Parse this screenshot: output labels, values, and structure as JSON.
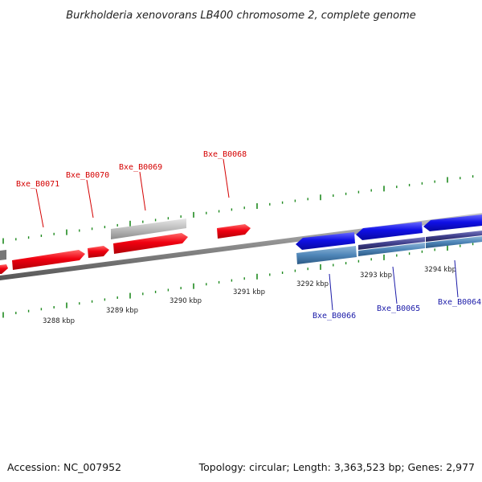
{
  "title": "Burkholderia xenovorans LB400 chromosome 2, complete genome",
  "footer": {
    "accession": "Accession: NC_007952",
    "topology": "Topology: circular; Length: 3,363,523 bp; Genes: 2,977"
  },
  "colors": {
    "forward_gene": "#e8000e",
    "reverse_gene": "#1010e0",
    "secondary_forward": "#bdbdbd",
    "secondary_reverse": "#4f86b8",
    "pseudo_track": "#3f3f8c",
    "backbone": "#8a8a8a",
    "tick": "#1f8a1f"
  },
  "scale": {
    "kbp_labels": [
      "3288 kbp",
      "3289 kbp",
      "3290 kbp",
      "3291 kbp",
      "3292 kbp",
      "3293 kbp",
      "3294 kbp"
    ]
  },
  "gene_labels": {
    "forward": [
      "Bxe_B0071",
      "Bxe_B0070",
      "Bxe_B0069",
      "Bxe_B0068"
    ],
    "reverse": [
      "Bxe_B0066",
      "Bxe_B0065",
      "Bxe_B0064"
    ]
  }
}
